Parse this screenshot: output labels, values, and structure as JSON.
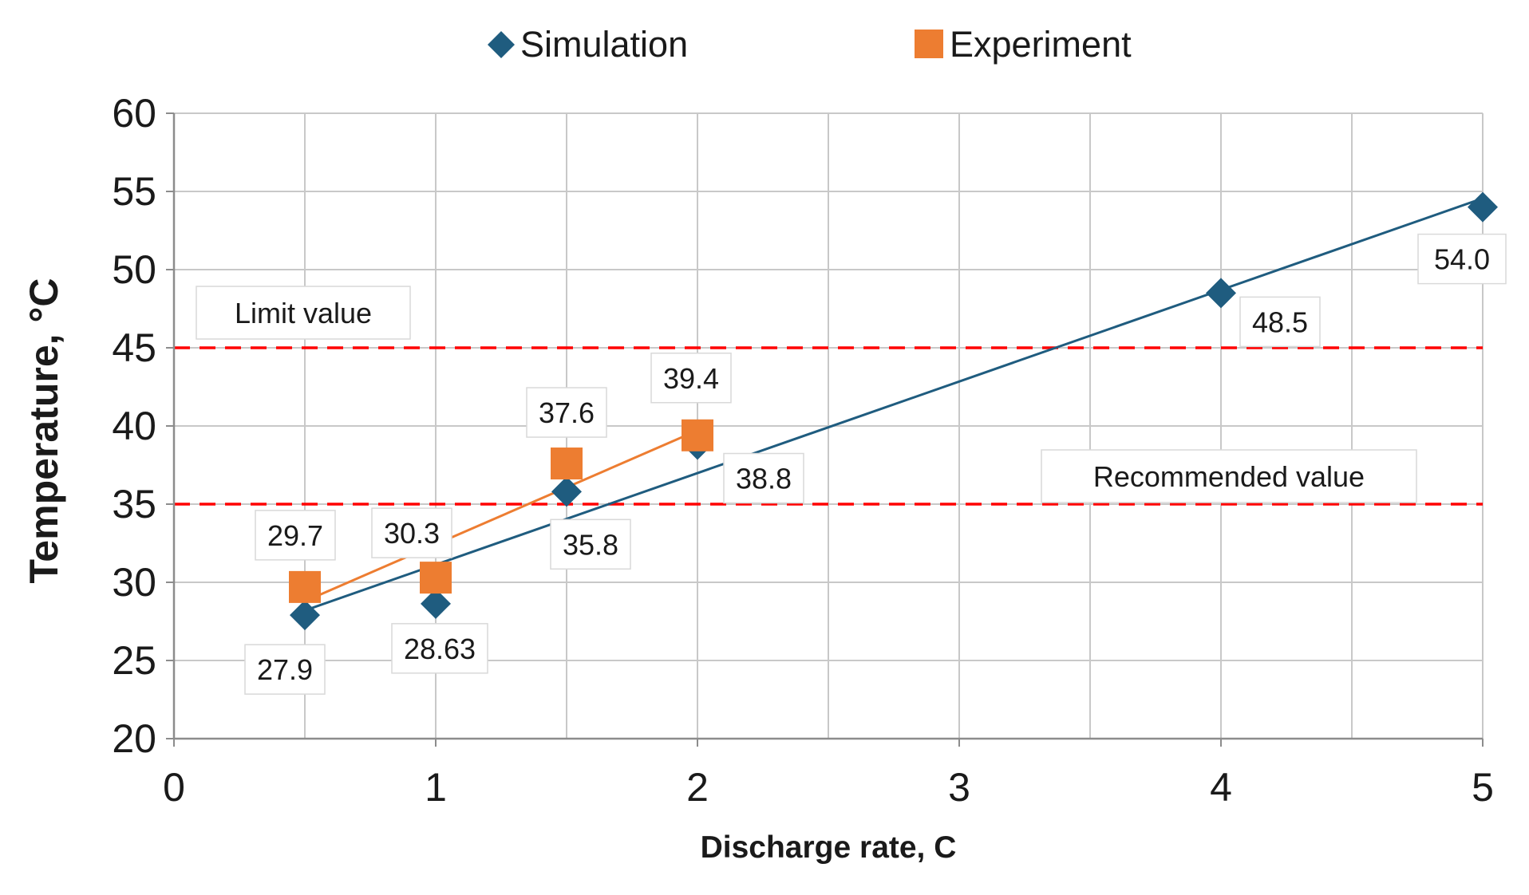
{
  "chart_data": {
    "type": "scatter",
    "xlabel": "Discharge rate, C",
    "ylabel": "Temperature, °C",
    "xlim": [
      0,
      5
    ],
    "ylim": [
      20,
      60
    ],
    "x_ticks": [
      0,
      1,
      2,
      3,
      4,
      5
    ],
    "y_ticks": [
      20,
      25,
      30,
      35,
      40,
      45,
      50,
      55,
      60
    ],
    "grid": true,
    "legend_position": "top",
    "series": [
      {
        "name": "Simulation",
        "marker": "diamond",
        "color": "#1f5c7f",
        "x": [
          0.5,
          1,
          1.5,
          2,
          4,
          5
        ],
        "y": [
          27.9,
          28.63,
          35.8,
          38.8,
          48.5,
          54.0
        ],
        "labels": [
          "27.9",
          "28.63",
          "35.8",
          "38.8",
          "48.5",
          "54.0"
        ],
        "trendline": true
      },
      {
        "name": "Experiment",
        "marker": "square",
        "color": "#ed7d31",
        "x": [
          0.5,
          1,
          1.5,
          2
        ],
        "y": [
          29.7,
          30.3,
          37.6,
          39.4
        ],
        "labels": [
          "29.7",
          "30.3",
          "37.6",
          "39.4"
        ],
        "trendline": true
      }
    ],
    "reference_lines": [
      {
        "label": "Limit value",
        "y": 45,
        "color": "#ff0000",
        "style": "dashed"
      },
      {
        "label": "Recommended value",
        "y": 35,
        "color": "#ff0000",
        "style": "dashed"
      }
    ]
  }
}
